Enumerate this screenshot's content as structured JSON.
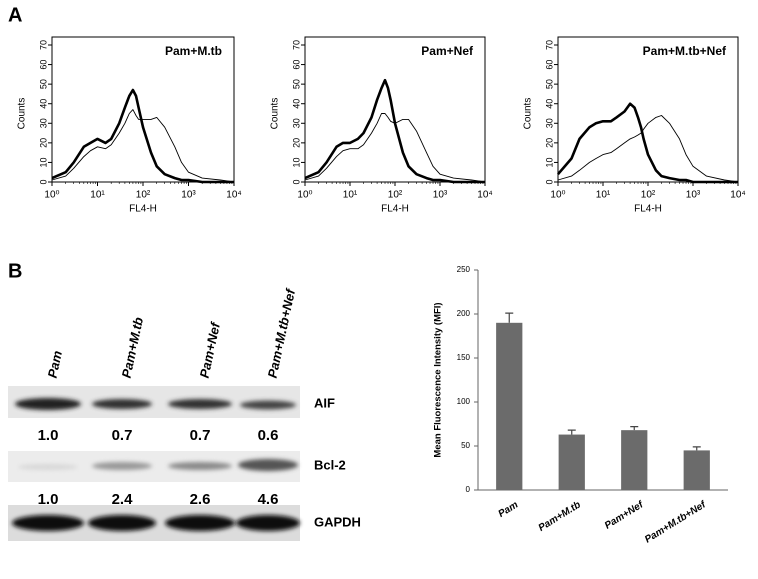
{
  "panel_labels": [
    "A",
    "B"
  ],
  "chart_data": [
    {
      "type": "line",
      "title": "Pam+M.tb",
      "xlabel": "FL4-H",
      "ylabel": "Counts",
      "log_x": true,
      "xlim": [
        1,
        10000
      ],
      "xticks": [
        {
          "value": 1,
          "label": "10⁰"
        },
        {
          "value": 10,
          "label": "10¹"
        },
        {
          "value": 100,
          "label": "10²"
        },
        {
          "value": 1000,
          "label": "10³"
        },
        {
          "value": 10000,
          "label": "10⁴"
        }
      ],
      "ylim": [
        0,
        70
      ],
      "yticks": [
        0,
        10,
        20,
        30,
        40,
        50,
        60,
        70
      ],
      "x": [
        1,
        2,
        3,
        5,
        7,
        10,
        15,
        20,
        30,
        40,
        50,
        60,
        70,
        80,
        100,
        150,
        200,
        300,
        500,
        700,
        1000,
        2000,
        5000,
        10000
      ],
      "series": [
        {
          "color": "#000000",
          "line_width": 2.6,
          "values": [
            2,
            5,
            10,
            18,
            20,
            22,
            20,
            22,
            30,
            38,
            44,
            47,
            44,
            38,
            28,
            15,
            8,
            4,
            2,
            1,
            1,
            0,
            0,
            0
          ]
        },
        {
          "color": "#000000",
          "line_width": 0.9,
          "values": [
            1,
            3,
            7,
            13,
            16,
            18,
            17,
            19,
            25,
            30,
            35,
            37,
            34,
            32,
            32,
            32,
            33,
            28,
            18,
            10,
            5,
            2,
            1,
            0
          ]
        }
      ]
    },
    {
      "type": "line",
      "title": "Pam+Nef",
      "xlabel": "FL4-H",
      "ylabel": "Counts",
      "log_x": true,
      "xlim": [
        1,
        10000
      ],
      "xticks": [
        {
          "value": 1,
          "label": "10⁰"
        },
        {
          "value": 10,
          "label": "10¹"
        },
        {
          "value": 100,
          "label": "10²"
        },
        {
          "value": 1000,
          "label": "10³"
        },
        {
          "value": 10000,
          "label": "10⁴"
        }
      ],
      "ylim": [
        0,
        70
      ],
      "yticks": [
        0,
        10,
        20,
        30,
        40,
        50,
        60,
        70
      ],
      "x": [
        1,
        2,
        3,
        5,
        7,
        10,
        15,
        20,
        30,
        40,
        50,
        60,
        70,
        80,
        100,
        150,
        200,
        300,
        500,
        700,
        1000,
        2000,
        5000,
        10000
      ],
      "series": [
        {
          "color": "#000000",
          "line_width": 2.6,
          "values": [
            2,
            5,
            10,
            18,
            20,
            20,
            22,
            25,
            33,
            42,
            48,
            52,
            48,
            42,
            30,
            15,
            8,
            4,
            2,
            1,
            1,
            0,
            0,
            0
          ]
        },
        {
          "color": "#000000",
          "line_width": 0.9,
          "values": [
            1,
            3,
            7,
            13,
            16,
            17,
            17,
            19,
            25,
            30,
            35,
            35,
            33,
            31,
            30,
            32,
            32,
            26,
            15,
            8,
            4,
            2,
            1,
            0
          ]
        }
      ]
    },
    {
      "type": "line",
      "title": "Pam+M.tb+Nef",
      "xlabel": "FL4-H",
      "ylabel": "Counts",
      "log_x": true,
      "xlim": [
        1,
        10000
      ],
      "xticks": [
        {
          "value": 1,
          "label": "10⁰"
        },
        {
          "value": 10,
          "label": "10¹"
        },
        {
          "value": 100,
          "label": "10²"
        },
        {
          "value": 1000,
          "label": "10³"
        },
        {
          "value": 10000,
          "label": "10⁴"
        }
      ],
      "ylim": [
        0,
        70
      ],
      "yticks": [
        0,
        10,
        20,
        30,
        40,
        50,
        60,
        70
      ],
      "x": [
        1,
        2,
        3,
        5,
        7,
        10,
        15,
        20,
        30,
        40,
        50,
        60,
        70,
        80,
        100,
        150,
        200,
        300,
        500,
        700,
        1000,
        2000,
        5000,
        10000
      ],
      "series": [
        {
          "color": "#000000",
          "line_width": 2.6,
          "values": [
            4,
            12,
            22,
            28,
            30,
            31,
            31,
            33,
            36,
            40,
            38,
            33,
            28,
            22,
            14,
            6,
            3,
            2,
            1,
            1,
            0,
            0,
            0,
            0
          ]
        },
        {
          "color": "#000000",
          "line_width": 0.9,
          "values": [
            1,
            3,
            6,
            10,
            12,
            14,
            15,
            17,
            20,
            22,
            23,
            24,
            25,
            27,
            30,
            33,
            34,
            30,
            22,
            14,
            8,
            3,
            1,
            0
          ]
        }
      ]
    },
    {
      "type": "bar",
      "ylabel": "Mean Fluorescence Intensity (MFI)",
      "categories": [
        "Pam",
        "Pam+M.tb",
        "Pam+Nef",
        "Pam+M.tb+Nef"
      ],
      "values": [
        190,
        63,
        68,
        45
      ],
      "errors": [
        11,
        5,
        4,
        4
      ],
      "color": "#6b6b6b",
      "ylim": [
        0,
        250
      ],
      "yticks": [
        0,
        50,
        100,
        150,
        200,
        250
      ]
    }
  ],
  "blot": {
    "lanes": [
      "Pam",
      "Pam+M.tb",
      "Pam+Nef",
      "Pam+M.tb+Nef"
    ],
    "rows": [
      {
        "label": "AIF",
        "values": [
          "1.0",
          "0.7",
          "0.7",
          "0.6"
        ]
      },
      {
        "label": "Bcl-2",
        "values": [
          "1.0",
          "2.4",
          "2.6",
          "4.6"
        ]
      },
      {
        "label": "GAPDH"
      }
    ]
  }
}
